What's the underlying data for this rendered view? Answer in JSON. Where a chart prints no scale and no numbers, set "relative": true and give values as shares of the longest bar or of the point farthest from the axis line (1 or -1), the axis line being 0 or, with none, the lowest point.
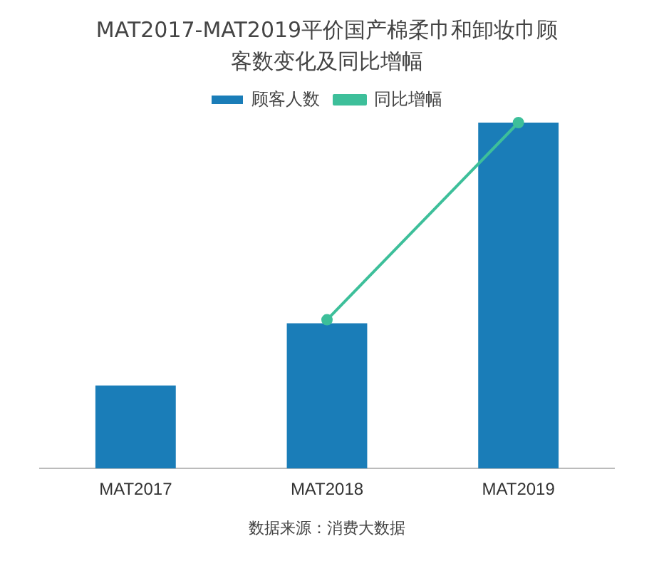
{
  "chart_data": {
    "type": "bar",
    "title": "MAT2017-MAT2019平价国产棉柔巾和卸妆巾顾客数变化及同比增幅",
    "categories": [
      "MAT2017",
      "MAT2018",
      "MAT2019"
    ],
    "relative": true,
    "series": [
      {
        "name": "顾客人数",
        "color": "#1a7db8",
        "values": [
          0.24,
          0.42,
          1
        ]
      },
      {
        "name": "同比增幅",
        "type": "line",
        "color": "#3dbf9a",
        "values": [
          null,
          0.43,
          1
        ],
        "marker": "circle"
      }
    ],
    "legend": "top",
    "grid": false,
    "annotations": [
      "数据来源：消费大数据"
    ]
  }
}
